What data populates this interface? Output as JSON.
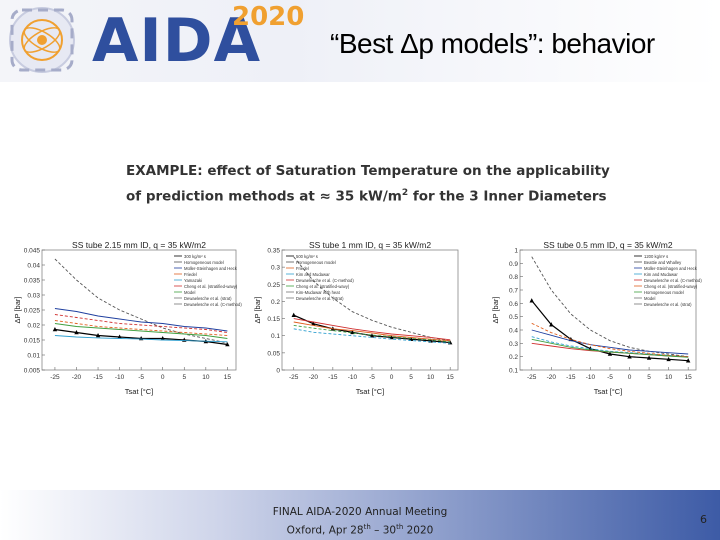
{
  "header": {
    "logo_text": "AIDA",
    "logo_year": "2020",
    "title": "“Best Δp models”: behavior"
  },
  "caption": {
    "line1": "EXAMPLE: effect of Saturation Temperature on the applicability",
    "line2_pre": "of prediction methods at ≈ 35 kW/m",
    "line2_sup": "2",
    "line2_post": "for the 3 Inner Diameters"
  },
  "colors": {
    "brand_blue": "#2f4f9e",
    "brand_orange": "#f0a030",
    "footer_blue": "#3d5ba6"
  },
  "chart_data": [
    {
      "type": "line",
      "title": "SS tube 2.15 mm ID, q = 35 kW/m2",
      "xlabel": "Tsat [°C]",
      "ylabel": "ΔP [bar]",
      "x_ticks": [
        "-25",
        "-20",
        "-15",
        "-10",
        "-5",
        "0",
        "5",
        "10",
        "15"
      ],
      "y_ticks": [
        "0.005",
        "0.01",
        "0.015",
        "0.02",
        "0.025",
        "0.03",
        "0.035",
        "0.04",
        "0.045"
      ],
      "xlim": [
        -28,
        17
      ],
      "ylim": [
        0.005,
        0.045
      ],
      "legend_position": "top-right",
      "legend": [
        "300 kg/m² s",
        "Homogeneous model",
        "Müller-Steinhagen and Heck",
        "Friedel",
        "Yamazaki",
        "Cheng et al. (stratified-wavy)",
        "Model",
        "Dewaelesche et al. (strat)",
        "Dewaelesche et al. (C-method)"
      ],
      "series": [
        {
          "name": "300 kg/m² s",
          "color": "#000000",
          "marker": true,
          "x": [
            -25,
            -20,
            -15,
            -10,
            -5,
            0,
            5,
            10,
            15
          ],
          "y": [
            0.0185,
            0.0175,
            0.0165,
            0.016,
            0.0155,
            0.0155,
            0.015,
            0.0145,
            0.0135
          ]
        },
        {
          "name": "Homogeneous model",
          "color": "#555555",
          "x": [
            -25,
            -20,
            -15,
            -10,
            -5,
            0,
            5,
            10,
            15
          ],
          "y": [
            0.042,
            0.035,
            0.029,
            0.025,
            0.022,
            0.019,
            0.017,
            0.0155,
            0.014
          ]
        },
        {
          "name": "Müller-Steinhagen and Heck",
          "color": "#1f3f9f",
          "x": [
            -25,
            -20,
            -15,
            -10,
            -5,
            0,
            5,
            10,
            15
          ],
          "y": [
            0.0255,
            0.0245,
            0.023,
            0.022,
            0.021,
            0.0205,
            0.0195,
            0.019,
            0.018
          ]
        },
        {
          "name": "Friedel",
          "color": "#e06020",
          "x": [
            -25,
            -20,
            -15,
            -10,
            -5,
            0,
            5,
            10,
            15
          ],
          "y": [
            0.0215,
            0.0205,
            0.0195,
            0.019,
            0.0185,
            0.018,
            0.0175,
            0.017,
            0.0165
          ]
        },
        {
          "name": "Yamazaki",
          "color": "#30a0d0",
          "x": [
            -25,
            -20,
            -15,
            -10,
            -5,
            0,
            5,
            10,
            15
          ],
          "y": [
            0.0165,
            0.016,
            0.0157,
            0.0155,
            0.0153,
            0.015,
            0.0148,
            0.0146,
            0.0144
          ]
        },
        {
          "name": "Cheng et al. (stratified-wavy)",
          "color": "#d03030",
          "x": [
            -25,
            -20,
            -15,
            -10,
            -5,
            0,
            5,
            10,
            15
          ],
          "y": [
            0.0235,
            0.0225,
            0.0215,
            0.0205,
            0.02,
            0.0195,
            0.019,
            0.0185,
            0.0175
          ]
        },
        {
          "name": "Model",
          "color": "#40a040",
          "x": [
            -25,
            -20,
            -15,
            -10,
            -5,
            0,
            5,
            10,
            15
          ],
          "y": [
            0.0205,
            0.0195,
            0.019,
            0.0185,
            0.018,
            0.0175,
            0.017,
            0.0165,
            0.0155
          ]
        }
      ]
    },
    {
      "type": "line",
      "title": "SS tube 1 mm ID, q = 35 kW/m2",
      "xlabel": "Tsat [°C]",
      "ylabel": "ΔP [bar]",
      "x_ticks": [
        "-25",
        "-20",
        "-15",
        "-10",
        "-5",
        "0",
        "5",
        "10",
        "15"
      ],
      "y_ticks": [
        "0",
        "0.05",
        "0.1",
        "0.15",
        "0.2",
        "0.25",
        "0.3",
        "0.35"
      ],
      "xlim": [
        -28,
        17
      ],
      "ylim": [
        0,
        0.35
      ],
      "legend_position": "top-left",
      "legend": [
        "500 kg/m² s",
        "Homogeneous model",
        "Friedel",
        "Kim and Mudawar",
        "Dewaelesche et al. (C-method)",
        "Cheng et al. (stratified-wavy)",
        "Kim-Mudawar with heat",
        "Dewaelesche et al. (strat)"
      ],
      "series": [
        {
          "name": "500 kg/m² s",
          "color": "#000000",
          "marker": true,
          "x": [
            -25,
            -20,
            -15,
            -10,
            -5,
            0,
            5,
            10,
            15
          ],
          "y": [
            0.16,
            0.135,
            0.12,
            0.11,
            0.1,
            0.095,
            0.09,
            0.085,
            0.08
          ]
        },
        {
          "name": "Homogeneous model",
          "color": "#555555",
          "x": [
            -25,
            -20,
            -15,
            -10,
            -5,
            0,
            5,
            10,
            15
          ],
          "y": [
            0.33,
            0.26,
            0.21,
            0.17,
            0.145,
            0.125,
            0.11,
            0.095,
            0.085
          ]
        },
        {
          "name": "Friedel",
          "color": "#e06020",
          "x": [
            -25,
            -20,
            -15,
            -10,
            -5,
            0,
            5,
            10,
            15
          ],
          "y": [
            0.14,
            0.13,
            0.12,
            0.115,
            0.108,
            0.1,
            0.095,
            0.09,
            0.085
          ]
        },
        {
          "name": "Kim and Mudawar",
          "color": "#30a0d0",
          "x": [
            -25,
            -20,
            -15,
            -10,
            -5,
            0,
            5,
            10,
            15
          ],
          "y": [
            0.12,
            0.11,
            0.105,
            0.1,
            0.095,
            0.09,
            0.086,
            0.082,
            0.078
          ]
        },
        {
          "name": "Cheng et al. (stratified-wavy)",
          "color": "#d03030",
          "x": [
            -25,
            -20,
            -15,
            -10,
            -5,
            0,
            5,
            10,
            15
          ],
          "y": [
            0.15,
            0.14,
            0.13,
            0.12,
            0.112,
            0.105,
            0.1,
            0.095,
            0.088
          ]
        },
        {
          "name": "Kim-Mudawar with heat",
          "color": "#40a040",
          "x": [
            -25,
            -20,
            -15,
            -10,
            -5,
            0,
            5,
            10,
            15
          ],
          "y": [
            0.13,
            0.122,
            0.115,
            0.108,
            0.102,
            0.097,
            0.092,
            0.088,
            0.082
          ]
        }
      ]
    },
    {
      "type": "line",
      "title": "SS tube 0.5 mm ID, q = 35 kW/m2",
      "xlabel": "Tsat [°C]",
      "ylabel": "ΔP [bar]",
      "x_ticks": [
        "-25",
        "-20",
        "-15",
        "-10",
        "-5",
        "0",
        "5",
        "10",
        "15"
      ],
      "y_ticks": [
        "0.1",
        "0.2",
        "0.3",
        "0.4",
        "0.5",
        "0.6",
        "0.7",
        "0.8",
        "0.9",
        "1"
      ],
      "xlim": [
        -28,
        17
      ],
      "ylim": [
        0.1,
        1.0
      ],
      "legend_position": "top-right",
      "legend": [
        "1200 kg/m² s",
        "Beattie and Whalley",
        "Müller-Steinhagen and Heck",
        "Kim and Mudawar",
        "Dewaelesche et al. (C-method)",
        "Cheng et al. (stratified-wavy)",
        "Homogeneous model",
        "Model",
        "Dewaelesche et al. (strat)"
      ],
      "series": [
        {
          "name": "1200 kg/m² s",
          "color": "#000000",
          "marker": true,
          "x": [
            -25,
            -20,
            -15,
            -10,
            -5,
            0,
            5,
            10,
            15
          ],
          "y": [
            0.62,
            0.44,
            0.33,
            0.26,
            0.22,
            0.2,
            0.19,
            0.18,
            0.17
          ]
        },
        {
          "name": "Beattie and Whalley",
          "color": "#555555",
          "x": [
            -25,
            -20,
            -15,
            -10,
            -5,
            0,
            5,
            10,
            15
          ],
          "y": [
            0.95,
            0.7,
            0.52,
            0.4,
            0.32,
            0.27,
            0.24,
            0.22,
            0.2
          ]
        },
        {
          "name": "Müller-Steinhagen and Heck",
          "color": "#1f3f9f",
          "x": [
            -25,
            -20,
            -15,
            -10,
            -5,
            0,
            5,
            10,
            15
          ],
          "y": [
            0.4,
            0.36,
            0.32,
            0.29,
            0.27,
            0.25,
            0.24,
            0.23,
            0.22
          ]
        },
        {
          "name": "Kim and Mudawar",
          "color": "#30a0d0",
          "x": [
            -25,
            -20,
            -15,
            -10,
            -5,
            0,
            5,
            10,
            15
          ],
          "y": [
            0.35,
            0.31,
            0.28,
            0.26,
            0.24,
            0.23,
            0.22,
            0.21,
            0.2
          ]
        },
        {
          "name": "Cheng et al. (stratified-wavy)",
          "color": "#d03030",
          "x": [
            -25,
            -20,
            -15,
            -10,
            -5,
            0,
            5,
            10,
            15
          ],
          "y": [
            0.3,
            0.28,
            0.26,
            0.245,
            0.235,
            0.225,
            0.215,
            0.205,
            0.2
          ]
        },
        {
          "name": "Homogeneous model",
          "color": "#e06020",
          "x": [
            -25,
            -20,
            -15,
            -10,
            -5,
            0,
            5,
            10,
            15
          ],
          "y": [
            0.45,
            0.38,
            0.33,
            0.29,
            0.26,
            0.24,
            0.225,
            0.21,
            0.2
          ]
        },
        {
          "name": "Model",
          "color": "#40a040",
          "x": [
            -25,
            -20,
            -15,
            -10,
            -5,
            0,
            5,
            10,
            15
          ],
          "y": [
            0.33,
            0.3,
            0.27,
            0.25,
            0.235,
            0.225,
            0.215,
            0.205,
            0.195
          ]
        }
      ]
    }
  ],
  "footer": {
    "line1": "FINAL AIDA-2020 Annual Meeting",
    "line2_pre": "Oxford, Apr 28",
    "line2_sup1": "th",
    "line2_mid": " – 30",
    "line2_sup2": "th",
    "line2_post": " 2020"
  },
  "page_number": "6"
}
